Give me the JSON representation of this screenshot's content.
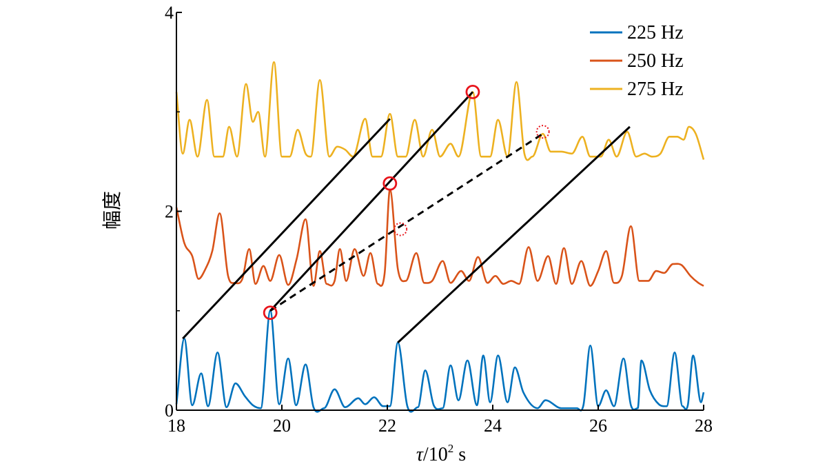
{
  "chart_data": {
    "type": "line",
    "title": "",
    "xlabel_symbol": "τ",
    "xlabel_unit_prefix": "/10",
    "xlabel_exponent": "2",
    "xlabel_unit": " s",
    "ylabel": "幅度",
    "xlim": [
      18,
      28
    ],
    "ylim": [
      0,
      4
    ],
    "x_ticks": [
      "18",
      "20",
      "22",
      "24",
      "26",
      "28"
    ],
    "y_ticks": [
      "0",
      "2",
      "4"
    ],
    "legend_position": "top-right",
    "series": [
      {
        "name": "225 Hz",
        "color": "#0072BD",
        "peaks": [
          [
            18.0,
            0.06
          ],
          [
            18.15,
            0.72
          ],
          [
            18.3,
            0.05
          ],
          [
            18.47,
            0.37
          ],
          [
            18.6,
            0.04
          ],
          [
            18.78,
            0.58
          ],
          [
            18.95,
            0.03
          ],
          [
            19.12,
            0.27
          ],
          [
            19.3,
            0.14
          ],
          [
            19.45,
            0.05
          ],
          [
            19.6,
            0.02
          ],
          [
            19.78,
            1.0
          ],
          [
            19.95,
            0.06
          ],
          [
            20.12,
            0.52
          ],
          [
            20.27,
            0.05
          ],
          [
            20.45,
            0.46
          ],
          [
            20.6,
            0.03
          ],
          [
            20.8,
            0.02
          ],
          [
            21.0,
            0.21
          ],
          [
            21.2,
            0.03
          ],
          [
            21.45,
            0.12
          ],
          [
            21.58,
            0.06
          ],
          [
            21.75,
            0.13
          ],
          [
            21.92,
            0.04
          ],
          [
            22.05,
            0.04
          ],
          [
            22.2,
            0.68
          ],
          [
            22.38,
            0.04
          ],
          [
            22.58,
            0.03
          ],
          [
            22.72,
            0.4
          ],
          [
            22.88,
            0.05
          ],
          [
            23.05,
            0.02
          ],
          [
            23.2,
            0.45
          ],
          [
            23.35,
            0.1
          ],
          [
            23.52,
            0.5
          ],
          [
            23.7,
            0.05
          ],
          [
            23.82,
            0.55
          ],
          [
            23.95,
            0.08
          ],
          [
            24.1,
            0.55
          ],
          [
            24.28,
            0.08
          ],
          [
            24.42,
            0.43
          ],
          [
            24.58,
            0.18
          ],
          [
            24.85,
            0.02
          ],
          [
            25.0,
            0.1
          ],
          [
            25.3,
            0.02
          ],
          [
            25.6,
            0.02
          ],
          [
            25.72,
            0.05
          ],
          [
            25.85,
            0.65
          ],
          [
            26.0,
            0.04
          ],
          [
            26.15,
            0.2
          ],
          [
            26.3,
            0.04
          ],
          [
            26.48,
            0.52
          ],
          [
            26.62,
            0.05
          ],
          [
            26.75,
            0.02
          ],
          [
            26.82,
            0.5
          ],
          [
            26.98,
            0.2
          ],
          [
            27.15,
            0.06
          ],
          [
            27.3,
            0.04
          ],
          [
            27.45,
            0.58
          ],
          [
            27.6,
            0.04
          ],
          [
            27.7,
            0.05
          ],
          [
            27.8,
            0.55
          ],
          [
            27.95,
            0.08
          ],
          [
            28.0,
            0.18
          ]
        ]
      },
      {
        "name": "250 Hz",
        "color": "#D95319",
        "peaks": [
          [
            18.0,
            2.04
          ],
          [
            18.15,
            1.68
          ],
          [
            18.3,
            1.55
          ],
          [
            18.42,
            1.32
          ],
          [
            18.55,
            1.42
          ],
          [
            18.68,
            1.6
          ],
          [
            18.82,
            1.98
          ],
          [
            18.98,
            1.35
          ],
          [
            19.1,
            1.28
          ],
          [
            19.25,
            1.32
          ],
          [
            19.38,
            1.62
          ],
          [
            19.5,
            1.27
          ],
          [
            19.65,
            1.45
          ],
          [
            19.78,
            1.3
          ],
          [
            19.95,
            1.56
          ],
          [
            20.12,
            1.26
          ],
          [
            20.28,
            1.52
          ],
          [
            20.45,
            1.92
          ],
          [
            20.6,
            1.25
          ],
          [
            20.72,
            1.6
          ],
          [
            20.85,
            1.27
          ],
          [
            21.0,
            1.3
          ],
          [
            21.1,
            1.62
          ],
          [
            21.22,
            1.3
          ],
          [
            21.38,
            1.62
          ],
          [
            21.55,
            1.35
          ],
          [
            21.68,
            1.58
          ],
          [
            21.82,
            1.27
          ],
          [
            21.95,
            1.38
          ],
          [
            22.05,
            2.22
          ],
          [
            22.2,
            1.42
          ],
          [
            22.35,
            1.3
          ],
          [
            22.55,
            1.58
          ],
          [
            22.7,
            1.28
          ],
          [
            22.85,
            1.3
          ],
          [
            23.05,
            1.5
          ],
          [
            23.2,
            1.28
          ],
          [
            23.4,
            1.4
          ],
          [
            23.55,
            1.3
          ],
          [
            23.72,
            1.54
          ],
          [
            23.9,
            1.28
          ],
          [
            24.05,
            1.35
          ],
          [
            24.2,
            1.27
          ],
          [
            24.35,
            1.3
          ],
          [
            24.5,
            1.27
          ],
          [
            24.68,
            1.64
          ],
          [
            24.85,
            1.3
          ],
          [
            25.05,
            1.55
          ],
          [
            25.2,
            1.27
          ],
          [
            25.35,
            1.63
          ],
          [
            25.5,
            1.27
          ],
          [
            25.68,
            1.5
          ],
          [
            25.85,
            1.25
          ],
          [
            26.0,
            1.4
          ],
          [
            26.15,
            1.6
          ],
          [
            26.3,
            1.28
          ],
          [
            26.45,
            1.35
          ],
          [
            26.62,
            1.85
          ],
          [
            26.78,
            1.3
          ],
          [
            26.95,
            1.3
          ],
          [
            27.1,
            1.4
          ],
          [
            27.25,
            1.38
          ],
          [
            27.42,
            1.47
          ],
          [
            27.58,
            1.46
          ],
          [
            27.75,
            1.35
          ],
          [
            27.9,
            1.28
          ],
          [
            28.0,
            1.25
          ]
        ]
      },
      {
        "name": "275 Hz",
        "color": "#EDB120",
        "peaks": [
          [
            18.0,
            3.2
          ],
          [
            18.12,
            2.58
          ],
          [
            18.25,
            2.92
          ],
          [
            18.4,
            2.55
          ],
          [
            18.58,
            3.12
          ],
          [
            18.72,
            2.55
          ],
          [
            18.88,
            2.55
          ],
          [
            19.0,
            2.85
          ],
          [
            19.15,
            2.55
          ],
          [
            19.32,
            3.28
          ],
          [
            19.45,
            2.9
          ],
          [
            19.55,
            3.0
          ],
          [
            19.68,
            2.55
          ],
          [
            19.85,
            3.5
          ],
          [
            20.0,
            2.55
          ],
          [
            20.15,
            2.55
          ],
          [
            20.3,
            2.82
          ],
          [
            20.45,
            2.58
          ],
          [
            20.55,
            2.55
          ],
          [
            20.72,
            3.32
          ],
          [
            20.9,
            2.55
          ],
          [
            21.05,
            2.65
          ],
          [
            21.2,
            2.62
          ],
          [
            21.35,
            2.55
          ],
          [
            21.58,
            2.93
          ],
          [
            21.72,
            2.55
          ],
          [
            21.88,
            2.55
          ],
          [
            22.05,
            2.98
          ],
          [
            22.2,
            2.55
          ],
          [
            22.35,
            2.55
          ],
          [
            22.52,
            2.92
          ],
          [
            22.68,
            2.55
          ],
          [
            22.85,
            2.82
          ],
          [
            23.0,
            2.55
          ],
          [
            23.2,
            2.68
          ],
          [
            23.35,
            2.55
          ],
          [
            23.62,
            3.2
          ],
          [
            23.78,
            2.55
          ],
          [
            23.95,
            2.55
          ],
          [
            24.1,
            2.92
          ],
          [
            24.28,
            2.55
          ],
          [
            24.45,
            3.3
          ],
          [
            24.6,
            2.58
          ],
          [
            24.75,
            2.55
          ],
          [
            24.95,
            2.78
          ],
          [
            25.1,
            2.6
          ],
          [
            25.3,
            2.6
          ],
          [
            25.5,
            2.58
          ],
          [
            25.7,
            2.75
          ],
          [
            25.85,
            2.55
          ],
          [
            26.05,
            2.55
          ],
          [
            26.2,
            2.72
          ],
          [
            26.35,
            2.55
          ],
          [
            26.55,
            2.8
          ],
          [
            26.72,
            2.55
          ],
          [
            26.88,
            2.58
          ],
          [
            27.02,
            2.55
          ],
          [
            27.18,
            2.58
          ],
          [
            27.35,
            2.75
          ],
          [
            27.5,
            2.75
          ],
          [
            27.62,
            2.72
          ],
          [
            27.72,
            2.85
          ],
          [
            27.85,
            2.78
          ],
          [
            28.0,
            2.52
          ]
        ]
      }
    ],
    "annotations": {
      "solid_lines": [
        {
          "from": [
            18.12,
            0.72
          ],
          "to": [
            22.05,
            2.93
          ]
        },
        {
          "from": [
            19.78,
            1.0
          ],
          "to": [
            23.62,
            3.2
          ]
        },
        {
          "from": [
            22.2,
            0.68
          ],
          "to": [
            26.6,
            2.85
          ]
        }
      ],
      "dashed_lines": [
        {
          "from": [
            19.78,
            1.0
          ],
          "to": [
            24.95,
            2.78
          ]
        }
      ],
      "solid_circles": [
        {
          "x": 19.78,
          "y": 0.98
        },
        {
          "x": 22.05,
          "y": 2.28
        },
        {
          "x": 23.62,
          "y": 3.2
        }
      ],
      "dotted_circles": [
        {
          "x": 22.25,
          "y": 1.82
        },
        {
          "x": 24.95,
          "y": 2.8
        }
      ],
      "marker_color": "#E8141B"
    }
  }
}
